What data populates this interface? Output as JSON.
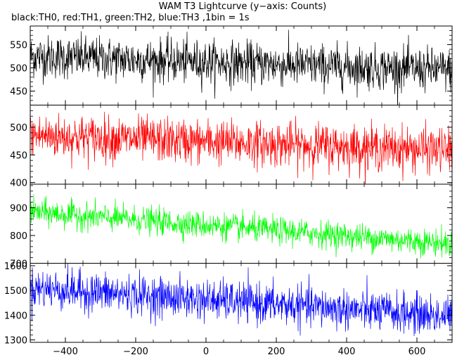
{
  "title": "WAM T3 Lightcurve (y−axis: Counts)",
  "subtitle": "black:TH0, red:TH1, green:TH2, blue:TH3 ,1bin = 1s",
  "chart_data": {
    "type": "line",
    "x_range": [
      -500,
      700
    ],
    "x_ticks": [
      -400,
      -200,
      0,
      200,
      400,
      600
    ],
    "x_tick_labels": [
      "−400",
      "−200",
      "0",
      "200",
      "400",
      "600"
    ],
    "grid": false,
    "panels": [
      {
        "series": {
          "name": "TH0",
          "color": "#000000"
        },
        "ylim": [
          420,
          590
        ],
        "y_ticks": [
          450,
          500,
          550
        ],
        "trend": {
          "x": [
            -500,
            700
          ],
          "y": [
            525,
            495
          ]
        },
        "noise": 23
      },
      {
        "series": {
          "name": "TH1",
          "color": "#ff0000"
        },
        "ylim": [
          397,
          540
        ],
        "y_ticks": [
          400,
          450,
          500
        ],
        "trend": {
          "x": [
            -500,
            700
          ],
          "y": [
            485,
            458
          ]
        },
        "noise": 20
      },
      {
        "series": {
          "name": "TH2",
          "color": "#00ff00"
        },
        "ylim": [
          700,
          985
        ],
        "y_ticks": [
          700,
          800,
          900
        ],
        "trend": {
          "x": [
            -500,
            700
          ],
          "y": [
            885,
            770
          ]
        },
        "noise": 24
      },
      {
        "series": {
          "name": "TH3",
          "color": "#0000ff"
        },
        "ylim": [
          1290,
          1610
        ],
        "y_ticks": [
          1300,
          1400,
          1500,
          1600
        ],
        "trend": {
          "x": [
            -500,
            700
          ],
          "y": [
            1510,
            1395
          ]
        },
        "noise": 40
      }
    ]
  }
}
